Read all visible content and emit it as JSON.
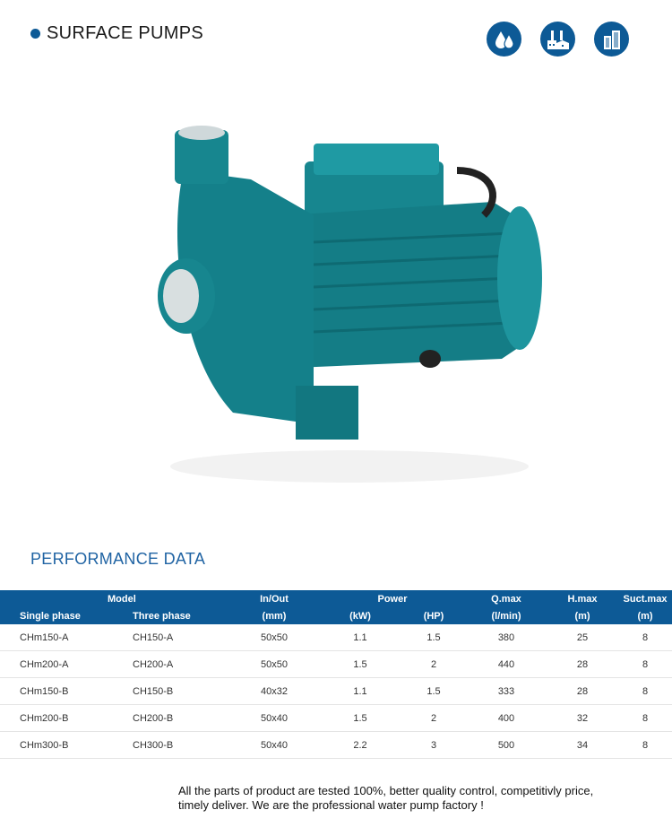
{
  "header": {
    "title": "SURFACE PUMPS",
    "accent": "#0d5a96",
    "icons": [
      "water-drops-icon",
      "factory-icon",
      "buildings-icon"
    ]
  },
  "product_image": {
    "subject": "centrifugal surface pump",
    "color": "#17868f"
  },
  "section_title": "PERFORMANCE DATA",
  "table": {
    "group_headers": {
      "model": "Model",
      "inout": "In/Out",
      "power": "Power",
      "qmax": "Q.max",
      "hmax": "H.max",
      "suct": "Suct.max"
    },
    "sub_headers": {
      "single": "Single phase",
      "three": "Three phase",
      "inout": "(mm)",
      "kw": "(kW)",
      "hp": "(HP)",
      "qmax": "(l/min)",
      "hmax": "(m)",
      "suct": "(m)"
    },
    "rows": [
      [
        "CHm150-A",
        "CH150-A",
        "50x50",
        "1.1",
        "1.5",
        "380",
        "25",
        "8"
      ],
      [
        "CHm200-A",
        "CH200-A",
        "50x50",
        "1.5",
        "2",
        "440",
        "28",
        "8"
      ],
      [
        "CHm150-B",
        "CH150-B",
        "40x32",
        "1.1",
        "1.5",
        "333",
        "28",
        "8"
      ],
      [
        "CHm200-B",
        "CH200-B",
        "50x40",
        "1.5",
        "2",
        "400",
        "32",
        "8"
      ],
      [
        "CHm300-B",
        "CH300-B",
        "50x40",
        "2.2",
        "3",
        "500",
        "34",
        "8"
      ]
    ]
  },
  "footer": {
    "line1": "All the parts of product are tested 100%, better quality control, competitivly price,",
    "line2": "timely deliver. We are the professional water pump factory !"
  }
}
